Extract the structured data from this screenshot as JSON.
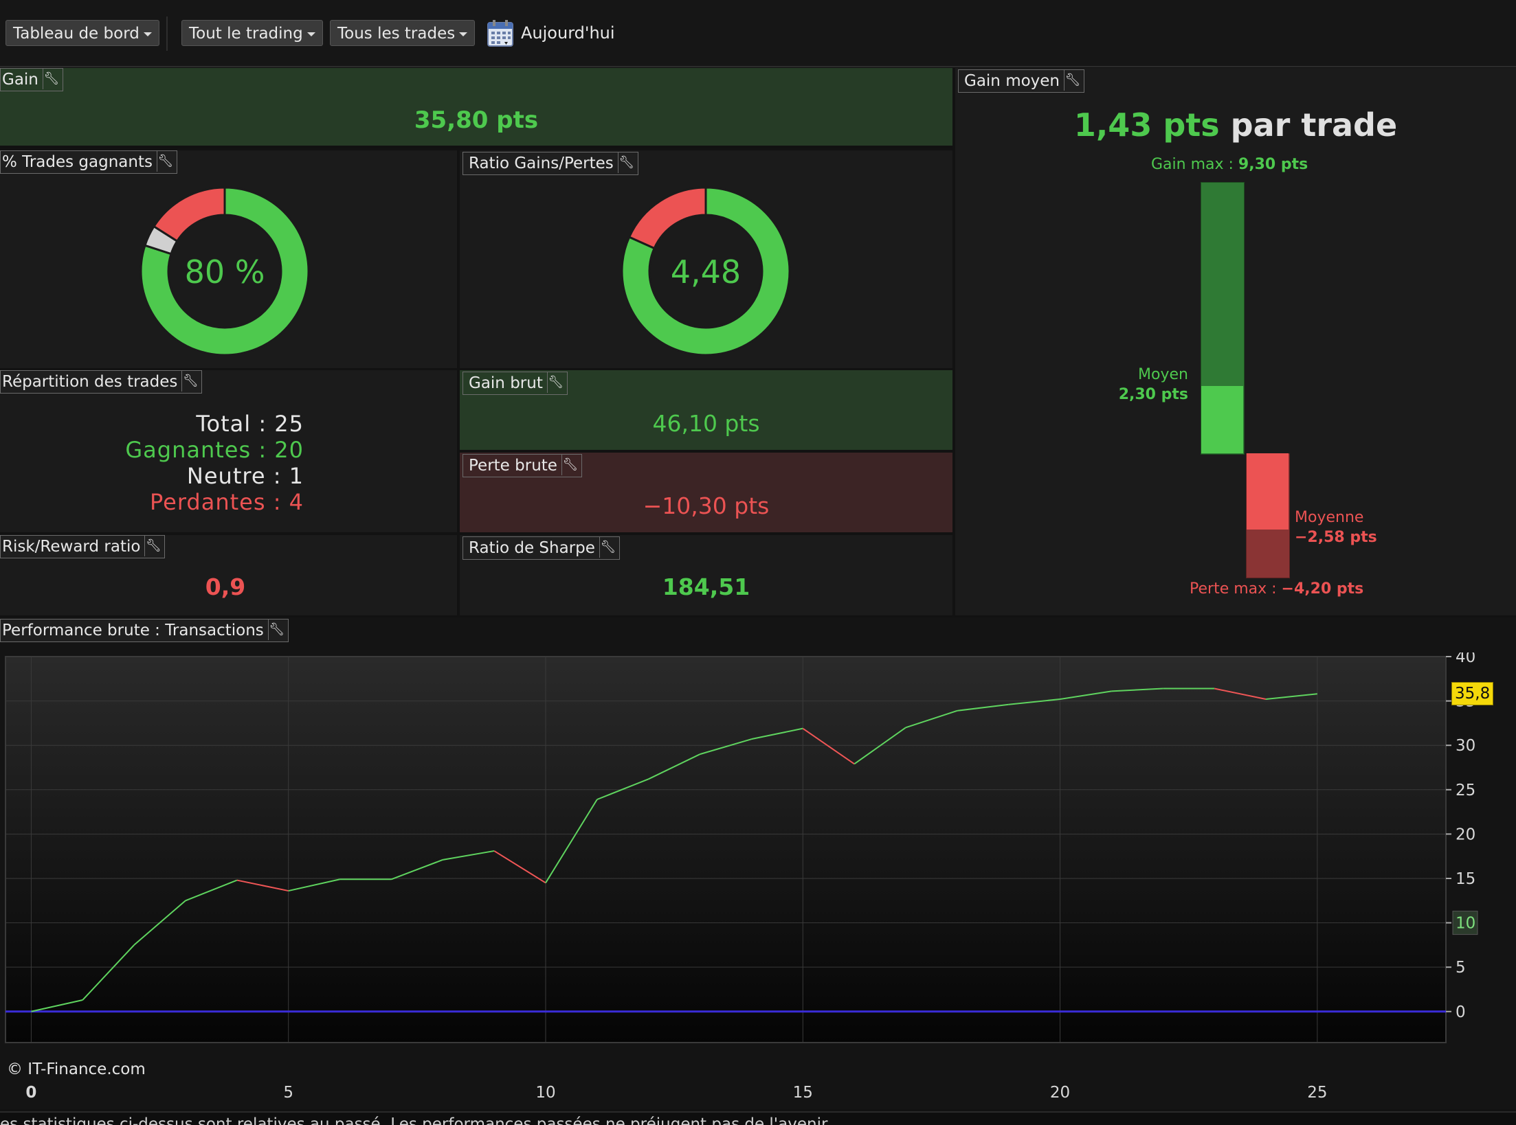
{
  "toolbar": {
    "dashboard_label": "Tableau de bord",
    "trading_label": "Tout le trading",
    "trades_label": "Tous les trades",
    "date_label": "Aujourd'hui"
  },
  "panels": {
    "gain": {
      "title": "Gain",
      "value": "35,80 pts"
    },
    "pct_winning": {
      "title": "% Trades gagnants",
      "value": "80 %",
      "winning_fraction": 0.8,
      "neutral_fraction": 0.04,
      "losing_fraction": 0.16
    },
    "ratio_gains": {
      "title": "Ratio Gains/Pertes",
      "value": "4,48",
      "gain_fraction": 0.817,
      "loss_fraction": 0.183
    },
    "repartition": {
      "title": "Répartition des trades",
      "total": "Total : 25",
      "winning": "Gagnantes : 20",
      "neutral": "Neutre : 1",
      "losing": "Perdantes : 4"
    },
    "gain_brut": {
      "title": "Gain brut",
      "value": "46,10 pts"
    },
    "perte_brute": {
      "title": "Perte brute",
      "value": "−10,30 pts"
    },
    "risk_reward": {
      "title": "Risk/Reward ratio",
      "value": "0,9"
    },
    "sharpe": {
      "title": "Ratio de Sharpe",
      "value": "184,51"
    },
    "gain_moyen": {
      "title": "Gain moyen",
      "headline_value": "1,43 pts",
      "headline_suffix": "par trade",
      "gain_max_label": "Gain max : ",
      "gain_max_value": "9,30 pts",
      "avg_gain_label": "Moyen",
      "avg_gain_value": "2,30 pts",
      "avg_loss_label": "Moyenne",
      "avg_loss_value": "−2,58 pts",
      "loss_max_label": "Perte max : ",
      "loss_max_value": "−4,20 pts",
      "gain_max": 9.3,
      "avg_gain": 2.3,
      "avg_loss": -2.58,
      "loss_max": -4.2
    },
    "performance": {
      "title": "Performance brute : Transactions"
    }
  },
  "copyright": "© IT-Finance.com",
  "footer_note": "es statistiques ci-dessus sont relatives au passé. Les performances passées ne préjugent pas de l'avenir.",
  "colors": {
    "gain": "#4ec94e",
    "loss": "#ec5353",
    "gain_bg": "#263c26",
    "loss_bg": "#3c2425",
    "zero_line": "#3a2cd8",
    "last_value_badge": "#f5d90a"
  },
  "chart_data": {
    "type": "line",
    "x_ticks": [
      0,
      5,
      10,
      15,
      20,
      25
    ],
    "y_ticks": [
      0,
      5,
      10,
      15,
      20,
      25,
      30,
      35,
      40
    ],
    "ylim": [
      -3.5,
      40
    ],
    "xlim": [
      -0.5,
      27.5
    ],
    "grid": true,
    "last_value": "35,8",
    "highlight_tick": "10",
    "x": [
      0,
      1,
      2,
      3,
      4,
      5,
      6,
      7,
      8,
      9,
      10,
      11,
      12,
      13,
      14,
      15,
      16,
      17,
      18,
      19,
      20,
      21,
      22,
      23,
      24,
      25
    ],
    "y": [
      0,
      1.3,
      7.5,
      12.5,
      14.8,
      13.6,
      14.9,
      14.9,
      17.1,
      18.1,
      14.5,
      23.9,
      26.2,
      29.0,
      30.7,
      31.9,
      27.9,
      32.0,
      33.9,
      34.6,
      35.2,
      36.1,
      36.4,
      36.4,
      35.2,
      35.8
    ]
  }
}
